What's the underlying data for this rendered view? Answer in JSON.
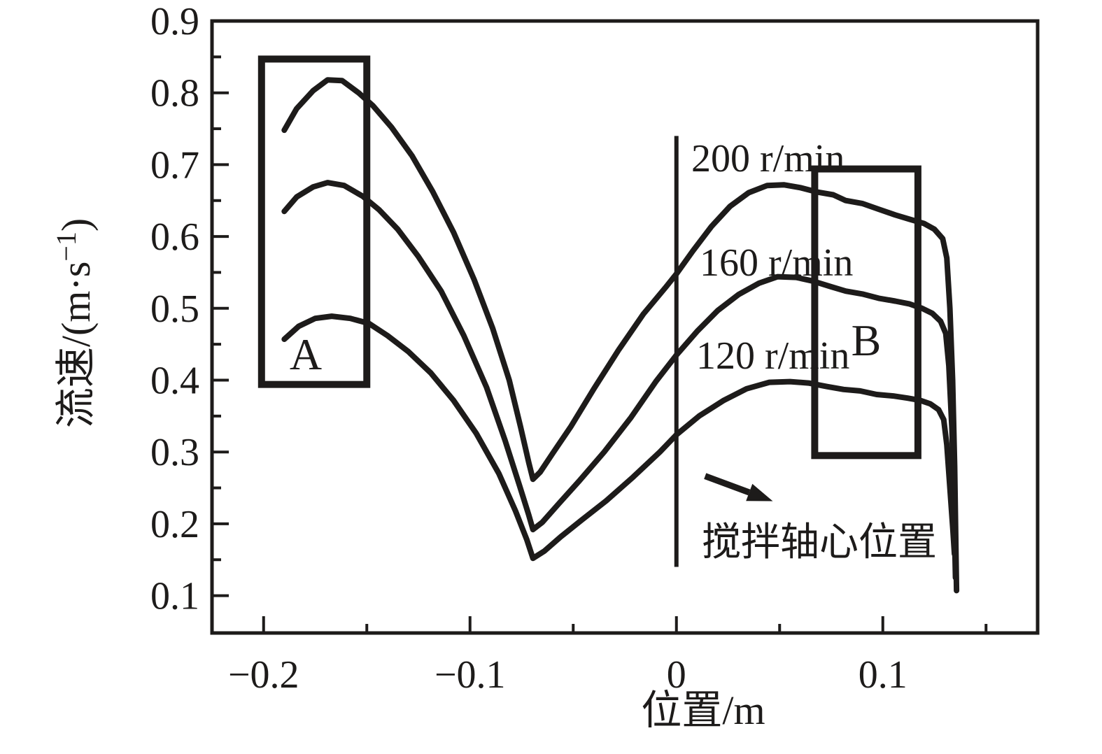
{
  "figure": {
    "background": "#ffffff",
    "ink_color": "#1d1b1a"
  },
  "chart_data": {
    "type": "line",
    "title": "",
    "xlabel": "位置/m",
    "ylabel": "流速/(m·s⁻¹)",
    "grid": false,
    "legend_position": "inline-labels-right-of-shaft-line",
    "x_range": [
      -0.225,
      0.175
    ],
    "y_range": [
      0.048,
      0.9
    ],
    "x_ticks": {
      "values": [
        -0.2,
        -0.1,
        0,
        0.1
      ],
      "labels": [
        "−0.2",
        "−0.1",
        "0",
        "0.1"
      ],
      "minor": [
        -0.15,
        -0.05,
        0.05,
        0.15
      ]
    },
    "y_ticks": {
      "values": [
        0.1,
        0.2,
        0.3,
        0.4,
        0.5,
        0.6,
        0.7,
        0.8,
        0.9
      ],
      "labels": [
        "0.1",
        "0.2",
        "0.3",
        "0.4",
        "0.5",
        "0.6",
        "0.7",
        "0.8",
        "0.9"
      ],
      "minor": [
        0.15,
        0.25,
        0.35,
        0.45,
        0.55,
        0.65,
        0.75,
        0.85
      ]
    },
    "series": [
      {
        "name": "200 r/min",
        "label": "200 r/min",
        "points": [
          [
            -0.19,
            0.748
          ],
          [
            -0.184,
            0.778
          ],
          [
            -0.176,
            0.803
          ],
          [
            -0.169,
            0.818
          ],
          [
            -0.162,
            0.817
          ],
          [
            -0.154,
            0.8
          ],
          [
            -0.147,
            0.782
          ],
          [
            -0.138,
            0.752
          ],
          [
            -0.128,
            0.712
          ],
          [
            -0.118,
            0.662
          ],
          [
            -0.108,
            0.606
          ],
          [
            -0.098,
            0.54
          ],
          [
            -0.089,
            0.472
          ],
          [
            -0.081,
            0.4
          ],
          [
            -0.0755,
            0.335
          ],
          [
            -0.0715,
            0.285
          ],
          [
            -0.0695,
            0.262
          ],
          [
            -0.066,
            0.272
          ],
          [
            -0.06,
            0.298
          ],
          [
            -0.051,
            0.336
          ],
          [
            -0.04,
            0.388
          ],
          [
            -0.028,
            0.442
          ],
          [
            -0.016,
            0.492
          ],
          [
            -0.005,
            0.53
          ],
          [
            0.0,
            0.548
          ],
          [
            0.008,
            0.58
          ],
          [
            0.017,
            0.614
          ],
          [
            0.026,
            0.642
          ],
          [
            0.035,
            0.661
          ],
          [
            0.044,
            0.671
          ],
          [
            0.052,
            0.672
          ],
          [
            0.06,
            0.668
          ],
          [
            0.068,
            0.662
          ],
          [
            0.076,
            0.658
          ],
          [
            0.082,
            0.65
          ],
          [
            0.09,
            0.646
          ],
          [
            0.098,
            0.638
          ],
          [
            0.106,
            0.63
          ],
          [
            0.113,
            0.624
          ],
          [
            0.12,
            0.618
          ],
          [
            0.125,
            0.61
          ],
          [
            0.129,
            0.597
          ],
          [
            0.131,
            0.57
          ],
          [
            0.1325,
            0.5
          ],
          [
            0.1338,
            0.4
          ],
          [
            0.1348,
            0.28
          ],
          [
            0.1354,
            0.165
          ],
          [
            0.1357,
            0.107
          ]
        ]
      },
      {
        "name": "160 r/min",
        "label": "160 r/min",
        "points": [
          [
            -0.19,
            0.635
          ],
          [
            -0.184,
            0.655
          ],
          [
            -0.176,
            0.669
          ],
          [
            -0.169,
            0.675
          ],
          [
            -0.161,
            0.671
          ],
          [
            -0.152,
            0.656
          ],
          [
            -0.144,
            0.637
          ],
          [
            -0.135,
            0.61
          ],
          [
            -0.125,
            0.572
          ],
          [
            -0.114,
            0.524
          ],
          [
            -0.103,
            0.462
          ],
          [
            -0.092,
            0.39
          ],
          [
            -0.083,
            0.316
          ],
          [
            -0.076,
            0.253
          ],
          [
            -0.0715,
            0.212
          ],
          [
            -0.0695,
            0.192
          ],
          [
            -0.065,
            0.202
          ],
          [
            -0.057,
            0.228
          ],
          [
            -0.047,
            0.26
          ],
          [
            -0.035,
            0.3
          ],
          [
            -0.022,
            0.348
          ],
          [
            -0.01,
            0.398
          ],
          [
            0.0,
            0.435
          ],
          [
            0.01,
            0.468
          ],
          [
            0.02,
            0.497
          ],
          [
            0.03,
            0.519
          ],
          [
            0.04,
            0.535
          ],
          [
            0.049,
            0.544
          ],
          [
            0.058,
            0.543
          ],
          [
            0.066,
            0.538
          ],
          [
            0.075,
            0.53
          ],
          [
            0.082,
            0.524
          ],
          [
            0.09,
            0.52
          ],
          [
            0.098,
            0.514
          ],
          [
            0.106,
            0.51
          ],
          [
            0.113,
            0.506
          ],
          [
            0.119,
            0.5
          ],
          [
            0.124,
            0.493
          ],
          [
            0.128,
            0.482
          ],
          [
            0.1305,
            0.465
          ],
          [
            0.132,
            0.42
          ],
          [
            0.1335,
            0.33
          ],
          [
            0.1345,
            0.22
          ],
          [
            0.1352,
            0.125
          ]
        ]
      },
      {
        "name": "120 r/min",
        "label": "120 r/min",
        "points": [
          [
            -0.19,
            0.457
          ],
          [
            -0.183,
            0.475
          ],
          [
            -0.175,
            0.486
          ],
          [
            -0.167,
            0.489
          ],
          [
            -0.158,
            0.486
          ],
          [
            -0.149,
            0.479
          ],
          [
            -0.14,
            0.462
          ],
          [
            -0.13,
            0.44
          ],
          [
            -0.119,
            0.41
          ],
          [
            -0.108,
            0.372
          ],
          [
            -0.097,
            0.326
          ],
          [
            -0.086,
            0.27
          ],
          [
            -0.078,
            0.218
          ],
          [
            -0.0725,
            0.178
          ],
          [
            -0.0695,
            0.152
          ],
          [
            -0.064,
            0.162
          ],
          [
            -0.056,
            0.182
          ],
          [
            -0.046,
            0.205
          ],
          [
            -0.034,
            0.232
          ],
          [
            -0.021,
            0.265
          ],
          [
            -0.008,
            0.3
          ],
          [
            0.0,
            0.324
          ],
          [
            0.011,
            0.35
          ],
          [
            0.023,
            0.372
          ],
          [
            0.034,
            0.388
          ],
          [
            0.045,
            0.397
          ],
          [
            0.055,
            0.398
          ],
          [
            0.064,
            0.396
          ],
          [
            0.073,
            0.391
          ],
          [
            0.081,
            0.387
          ],
          [
            0.089,
            0.385
          ],
          [
            0.097,
            0.38
          ],
          [
            0.105,
            0.378
          ],
          [
            0.112,
            0.375
          ],
          [
            0.118,
            0.372
          ],
          [
            0.123,
            0.367
          ],
          [
            0.127,
            0.359
          ],
          [
            0.1295,
            0.345
          ],
          [
            0.131,
            0.31
          ],
          [
            0.1325,
            0.25
          ],
          [
            0.134,
            0.19
          ],
          [
            0.1347,
            0.158
          ]
        ]
      }
    ],
    "boxes": [
      {
        "label": "A",
        "x1": -0.201,
        "x2": -0.15,
        "y1": 0.394,
        "y2": 0.847
      },
      {
        "label": "B",
        "x1": 0.067,
        "x2": 0.117,
        "y1": 0.295,
        "y2": 0.694
      }
    ],
    "shaft": {
      "label": "搅拌轴心位置",
      "x": 0,
      "y1": 0.14,
      "y2": 0.74
    },
    "arrow": {
      "x1": 0.0139,
      "y1": 0.2665,
      "x2": 0.0467,
      "y2": 0.2315
    }
  }
}
